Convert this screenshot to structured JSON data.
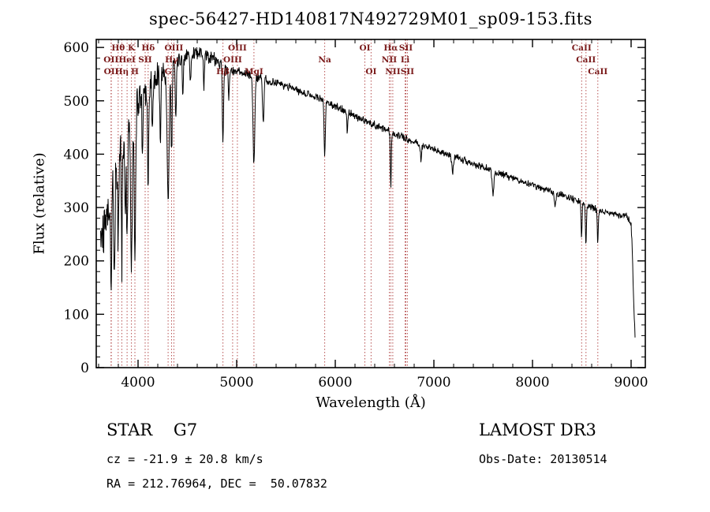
{
  "page": {
    "background": "#ffffff",
    "accent_color": "#b04040"
  },
  "footer": {
    "left": {
      "class_line": "STAR    G7",
      "cz_line": "cz = -21.9 ± 20.8 km/s",
      "radec_line": "RA = 212.76964, DEC =  50.07832"
    },
    "right": {
      "survey": "LAMOST DR3",
      "obs_date": "Obs-Date: 20130514"
    }
  },
  "chart_data": {
    "type": "line",
    "title": "spec-56427-HD140817N492729M01_sp09-153.fits",
    "xlabel": "Wavelength (Å)",
    "ylabel": "Flux (relative)",
    "xlim": [
      3576,
      9144
    ],
    "ylim": [
      0,
      615
    ],
    "xticks": [
      4000,
      5000,
      6000,
      7000,
      8000,
      9000
    ],
    "yticks": [
      0,
      100,
      200,
      300,
      400,
      500,
      600
    ],
    "x_minor_step": 200,
    "y_minor_step": 20,
    "grid": false,
    "legend": "none",
    "line_color": "#000000",
    "marker_color": "#b04040",
    "label_color": "#7a1a1a",
    "spectrum": {
      "x_start": 3620,
      "x_end": 9040,
      "x_step": 4,
      "continuum": [
        [
          3620,
          240
        ],
        [
          3660,
          265
        ],
        [
          3705,
          290
        ],
        [
          3740,
          330
        ],
        [
          3780,
          380
        ],
        [
          3820,
          410
        ],
        [
          3860,
          430
        ],
        [
          3900,
          450
        ],
        [
          3940,
          465
        ],
        [
          3980,
          480
        ],
        [
          4020,
          500
        ],
        [
          4060,
          515
        ],
        [
          4100,
          525
        ],
        [
          4150,
          535
        ],
        [
          4200,
          545
        ],
        [
          4250,
          552
        ],
        [
          4300,
          558
        ],
        [
          4350,
          568
        ],
        [
          4400,
          575
        ],
        [
          4450,
          580
        ],
        [
          4500,
          585
        ],
        [
          4550,
          588
        ],
        [
          4600,
          590
        ],
        [
          4650,
          588
        ],
        [
          4700,
          585
        ],
        [
          4750,
          580
        ],
        [
          4800,
          575
        ],
        [
          4850,
          568
        ],
        [
          4900,
          560
        ],
        [
          4950,
          557
        ],
        [
          5000,
          555
        ],
        [
          5100,
          550
        ],
        [
          5200,
          545
        ],
        [
          5300,
          540
        ],
        [
          5400,
          535
        ],
        [
          5500,
          528
        ],
        [
          5600,
          520
        ],
        [
          5700,
          514
        ],
        [
          5800,
          507
        ],
        [
          5900,
          500
        ],
        [
          6000,
          490
        ],
        [
          6100,
          481
        ],
        [
          6200,
          472
        ],
        [
          6300,
          463
        ],
        [
          6400,
          455
        ],
        [
          6500,
          447
        ],
        [
          6600,
          438
        ],
        [
          6700,
          430
        ],
        [
          6800,
          424
        ],
        [
          6900,
          417
        ],
        [
          7000,
          410
        ],
        [
          7100,
          403
        ],
        [
          7200,
          396
        ],
        [
          7300,
          389
        ],
        [
          7400,
          382
        ],
        [
          7500,
          375
        ],
        [
          7600,
          369
        ],
        [
          7700,
          362
        ],
        [
          7800,
          355
        ],
        [
          7900,
          348
        ],
        [
          8000,
          342
        ],
        [
          8100,
          336
        ],
        [
          8200,
          330
        ],
        [
          8300,
          324
        ],
        [
          8400,
          317
        ],
        [
          8500,
          310
        ],
        [
          8600,
          301
        ],
        [
          8700,
          293
        ],
        [
          8800,
          288
        ],
        [
          8850,
          286
        ],
        [
          8900,
          284
        ],
        [
          8950,
          287
        ],
        [
          9000,
          268
        ],
        [
          9012,
          220
        ],
        [
          9025,
          130
        ],
        [
          9040,
          55
        ]
      ],
      "noise_profile": [
        [
          3620,
          60
        ],
        [
          3800,
          55
        ],
        [
          3900,
          50
        ],
        [
          4000,
          40
        ],
        [
          4100,
          35
        ],
        [
          4200,
          28
        ],
        [
          4300,
          24
        ],
        [
          4400,
          22
        ],
        [
          4600,
          18
        ],
        [
          4800,
          15
        ],
        [
          5000,
          11
        ],
        [
          5500,
          9
        ],
        [
          6000,
          9
        ],
        [
          6500,
          8
        ],
        [
          7000,
          8
        ],
        [
          7500,
          8
        ],
        [
          8000,
          8
        ],
        [
          8500,
          8
        ],
        [
          8900,
          7
        ],
        [
          9040,
          8
        ]
      ],
      "absorption_lines": [
        [
          3727,
          190,
          6
        ],
        [
          3760,
          220,
          5
        ],
        [
          3798,
          180,
          5
        ],
        [
          3835,
          230,
          5
        ],
        [
          3869,
          150,
          5
        ],
        [
          3889,
          210,
          6
        ],
        [
          3933,
          290,
          7
        ],
        [
          3968,
          260,
          7
        ],
        [
          4045,
          110,
          5
        ],
        [
          4102,
          175,
          6
        ],
        [
          4144,
          90,
          5
        ],
        [
          4226,
          140,
          5
        ],
        [
          4305,
          255,
          10
        ],
        [
          4340,
          165,
          6
        ],
        [
          4383,
          110,
          5
        ],
        [
          4455,
          70,
          5
        ],
        [
          4531,
          60,
          5
        ],
        [
          4668,
          60,
          5
        ],
        [
          4861,
          145,
          6
        ],
        [
          4920,
          60,
          5
        ],
        [
          5175,
          165,
          9
        ],
        [
          5270,
          85,
          7
        ],
        [
          5893,
          105,
          6
        ],
        [
          6122,
          40,
          5
        ],
        [
          6563,
          105,
          5
        ],
        [
          6870,
          35,
          6
        ],
        [
          7190,
          30,
          8
        ],
        [
          7600,
          45,
          9
        ],
        [
          8230,
          30,
          7
        ],
        [
          8498,
          65,
          5
        ],
        [
          8542,
          80,
          5
        ],
        [
          8662,
          65,
          5
        ]
      ]
    },
    "marked_lines": [
      {
        "label": "Hθ",
        "wavelength": 3798,
        "row": 1
      },
      {
        "label": "K",
        "wavelength": 3933,
        "row": 1
      },
      {
        "label": "Hδ",
        "wavelength": 4102,
        "row": 1
      },
      {
        "label": "OIII",
        "wavelength": 4363,
        "row": 1
      },
      {
        "label": "OIII",
        "wavelength": 5007,
        "row": 1
      },
      {
        "label": "OI",
        "wavelength": 6300,
        "row": 1
      },
      {
        "label": "Hα",
        "wavelength": 6563,
        "row": 1
      },
      {
        "label": "SII",
        "wavelength": 6716,
        "row": 1
      },
      {
        "label": "CaII",
        "wavelength": 8498,
        "row": 1
      },
      {
        "label": "OII",
        "wavelength": 3726,
        "row": 2
      },
      {
        "label": "HeI",
        "wavelength": 3889,
        "row": 2
      },
      {
        "label": "SII",
        "wavelength": 4072,
        "row": 2
      },
      {
        "label": "Hγ",
        "wavelength": 4340,
        "row": 2
      },
      {
        "label": "OIII",
        "wavelength": 4959,
        "row": 2
      },
      {
        "label": "Na",
        "wavelength": 5893,
        "row": 2
      },
      {
        "label": "NII",
        "wavelength": 6548,
        "row": 2
      },
      {
        "label": "Li",
        "wavelength": 6708,
        "row": 2
      },
      {
        "label": "CaII",
        "wavelength": 8542,
        "row": 2
      },
      {
        "label": "OII",
        "wavelength": 3729,
        "row": 3
      },
      {
        "label": "Hη",
        "wavelength": 3835,
        "row": 3
      },
      {
        "label": "H",
        "wavelength": 3968,
        "row": 3
      },
      {
        "label": "G",
        "wavelength": 4305,
        "row": 3
      },
      {
        "label": "Hβ",
        "wavelength": 4861,
        "row": 3
      },
      {
        "label": "MgI",
        "wavelength": 5175,
        "row": 3
      },
      {
        "label": "OI",
        "wavelength": 6363,
        "row": 3
      },
      {
        "label": "NII",
        "wavelength": 6583,
        "row": 3
      },
      {
        "label": "SII",
        "wavelength": 6731,
        "row": 3
      },
      {
        "label": "CaII",
        "wavelength": 8662,
        "row": 3
      }
    ]
  }
}
